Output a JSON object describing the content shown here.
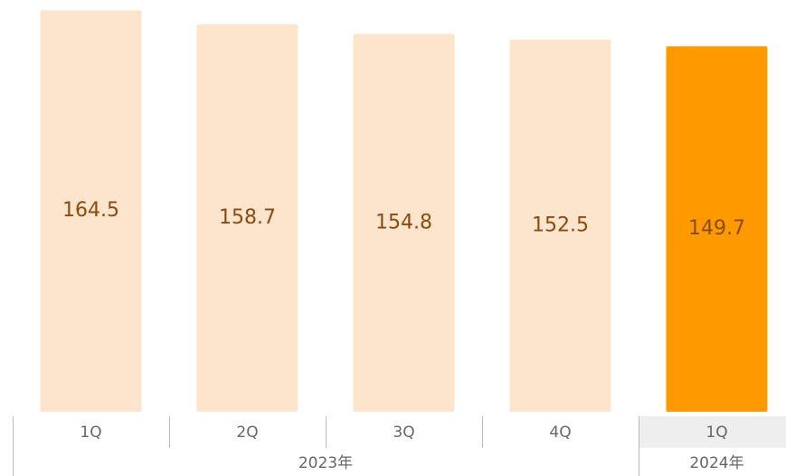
{
  "chart_data": {
    "type": "bar",
    "groups": [
      {
        "label": "2023年",
        "categories": [
          "1Q",
          "2Q",
          "3Q",
          "4Q"
        ]
      },
      {
        "label": "2024年",
        "categories": [
          "1Q"
        ]
      }
    ],
    "values": [
      164.5,
      158.7,
      154.8,
      152.5,
      149.7
    ],
    "colors": [
      "#fce5cc",
      "#fce5cc",
      "#fce5cc",
      "#fce5cc",
      "#ff9900"
    ],
    "ylim": [
      0,
      165
    ]
  }
}
